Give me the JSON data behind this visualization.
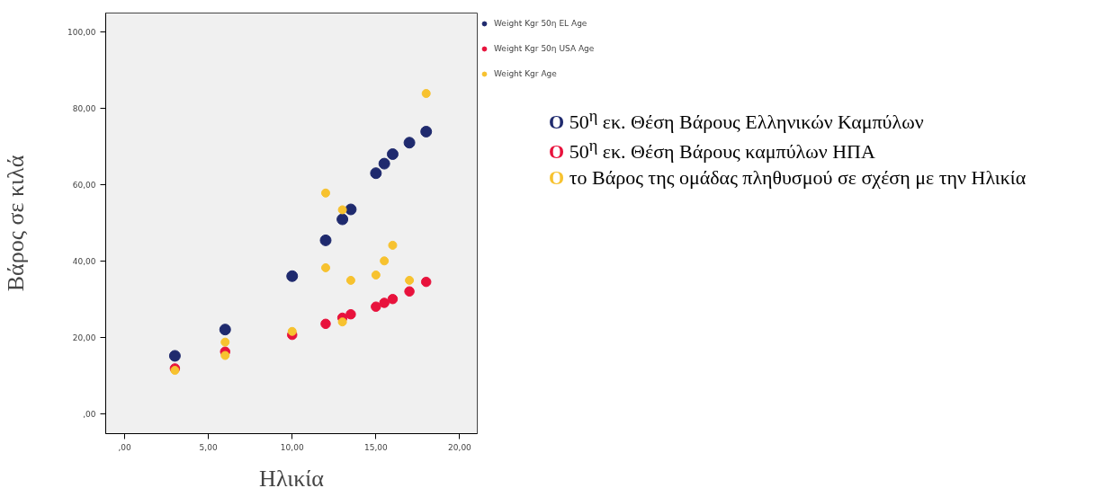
{
  "chart_data": {
    "type": "scatter",
    "xlabel": "Ηλικία",
    "ylabel": "Βάρος σε κιλά",
    "xlim": [
      -1.13,
      21.05
    ],
    "ylim": [
      -5.3,
      105
    ],
    "xticks": [
      {
        "value": 0,
        "label": ",00"
      },
      {
        "value": 5,
        "label": "5,00"
      },
      {
        "value": 10,
        "label": "10,00"
      },
      {
        "value": 15,
        "label": "15,00"
      },
      {
        "value": 20,
        "label": "20,00"
      }
    ],
    "yticks": [
      {
        "value": 0,
        "label": ",00"
      },
      {
        "value": 20,
        "label": "20,00"
      },
      {
        "value": 40,
        "label": "40,00"
      },
      {
        "value": 60,
        "label": "60,00"
      },
      {
        "value": 80,
        "label": "80,00"
      },
      {
        "value": 100,
        "label": "100,00"
      }
    ],
    "grid": false,
    "legend": "top right",
    "marker": "circle",
    "series": [
      {
        "name": "Weight Kgr 50η EL Age",
        "color": "#1f2a6e",
        "x": [
          3,
          6,
          10,
          12,
          13,
          13.5,
          15,
          15.5,
          16,
          17,
          18
        ],
        "values": [
          15.1,
          22.0,
          36.0,
          45.4,
          50.9,
          53.5,
          63.0,
          65.5,
          68.0,
          71.0,
          73.9
        ]
      },
      {
        "name": "Weight Kgr 50η USA Age",
        "color": "#e8123c",
        "x": [
          3,
          6,
          10,
          12,
          13,
          13.5,
          15,
          15.5,
          16,
          17,
          18
        ],
        "values": [
          11.8,
          16.2,
          20.6,
          23.5,
          25.1,
          26.0,
          28.0,
          29.0,
          30.0,
          32.0,
          34.5
        ]
      },
      {
        "name": "Weight Kgr Age",
        "color": "#f7c22f",
        "x": [
          3,
          6,
          6,
          10,
          12,
          12,
          13,
          13,
          13.5,
          15,
          15.5,
          16,
          17,
          18
        ],
        "values": [
          11.3,
          18.7,
          15.2,
          21.5,
          57.8,
          38.2,
          53.4,
          24.0,
          34.9,
          36.3,
          40.0,
          44.1,
          34.9,
          83.9
        ]
      }
    ],
    "annotations": [
      "O 50$^{η}$ εκ. Θέση Βάρους Ελληνικών Καμπύλων",
      "O 50$^{η}$ εκ. Θέση Βάρους καμπύλων ΗΠΑ",
      "O το Βάρος της ομάδας πληθυσμού σε σχέση με την Ηλικία"
    ]
  }
}
